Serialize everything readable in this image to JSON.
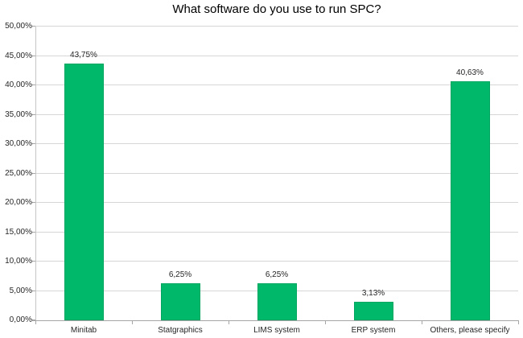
{
  "chart_data": {
    "type": "bar",
    "title": "What software do you use to run SPC?",
    "categories": [
      "Minitab",
      "Statgraphics",
      "LIMS system",
      "ERP system",
      "Others, please specify"
    ],
    "values": [
      43.75,
      6.25,
      6.25,
      3.13,
      40.63
    ],
    "value_labels": [
      "43,75%",
      "6,25%",
      "6,25%",
      "3,13%",
      "40,63%"
    ],
    "xlabel": "",
    "ylabel": "",
    "ylim": [
      0,
      50
    ],
    "y_tick_step": 5,
    "y_tick_labels": [
      "0,00%",
      "5,00%",
      "10,00%",
      "15,00%",
      "20,00%",
      "25,00%",
      "30,00%",
      "35,00%",
      "40,00%",
      "45,00%",
      "50,00%"
    ],
    "grid": true,
    "legend": "none",
    "decimal_separator": ",",
    "colors": {
      "bar_fill": "#00B86A",
      "bar_border": "#00A55F",
      "gridline": "#D6D6D6",
      "y_axis_line": "#C6C6C6",
      "x_axis_line": "#A6A6A6",
      "tick": "#A6A6A6",
      "text": "#262626",
      "title": "#000000",
      "background": "#FFFFFF"
    }
  }
}
